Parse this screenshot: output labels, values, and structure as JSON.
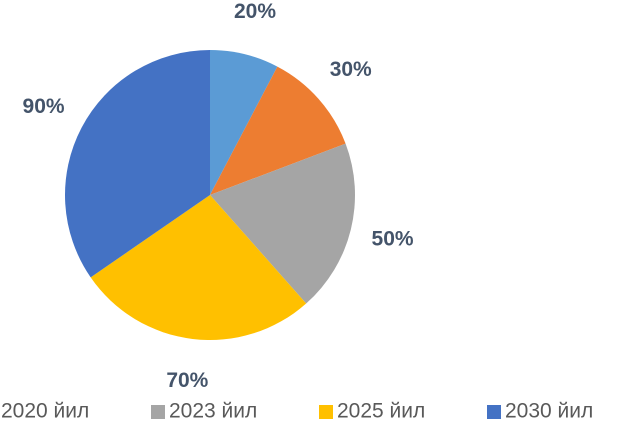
{
  "chart_data": {
    "type": "pie",
    "categories": [
      null,
      "2020 йил",
      "2023 йил",
      "2025 йил",
      "2030 йил"
    ],
    "values": [
      20,
      30,
      50,
      70,
      90
    ],
    "value_labels": [
      "20%",
      "30%",
      "50%",
      "70%",
      "90%"
    ],
    "colors": [
      "#5b9bd5",
      "#ed7d31",
      "#a5a5a5",
      "#ffc000",
      "#4472c4"
    ],
    "legend": "bottom"
  }
}
